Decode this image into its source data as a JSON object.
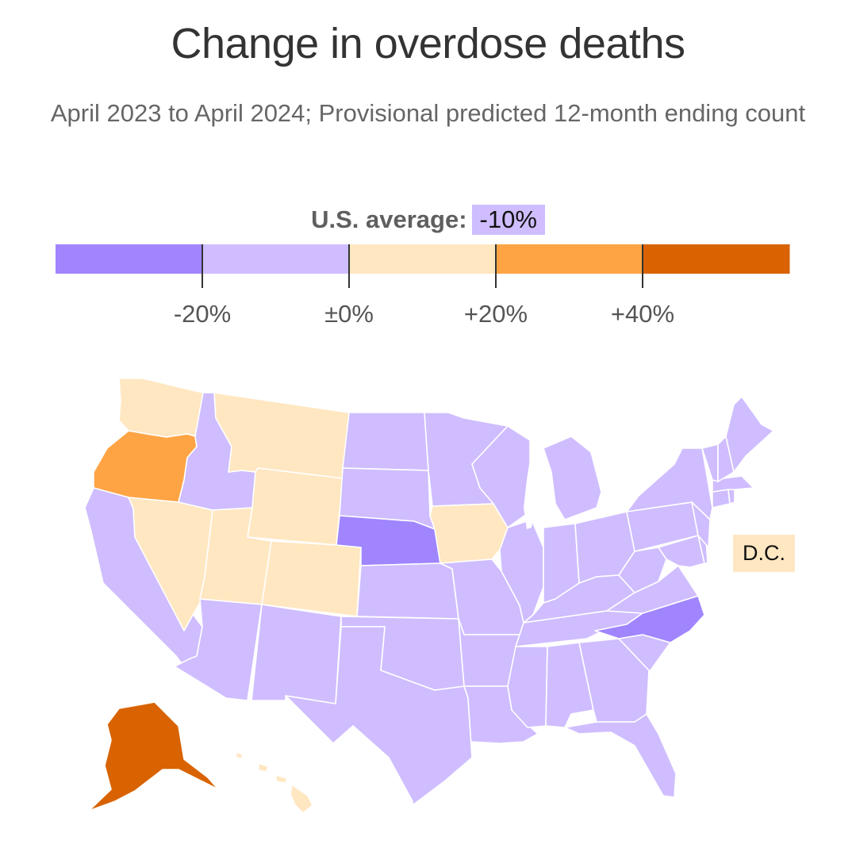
{
  "title": "Change in overdose deaths",
  "subtitle": "April 2023 to April 2024; Provisional predicted 12‑month ending count",
  "average": {
    "label": "U.S. average:",
    "value": "-10%"
  },
  "legend": {
    "bins": [
      {
        "name": "below-minus-20",
        "color": "#a085ff"
      },
      {
        "name": "minus-20-to-0",
        "color": "#cfbdff"
      },
      {
        "name": "0-to-plus-20",
        "color": "#ffe7c2"
      },
      {
        "name": "plus-20-to-40",
        "color": "#ffa444"
      },
      {
        "name": "above-plus-40",
        "color": "#d86300"
      }
    ],
    "ticks": [
      "-20%",
      "±0%",
      "+20%",
      "+40%"
    ]
  },
  "dc": {
    "label": "D.C.",
    "bin": 2
  },
  "states": {
    "WA": 2,
    "OR": 3,
    "CA": 1,
    "NV": 2,
    "ID": 1,
    "MT": 2,
    "WY": 2,
    "UT": 2,
    "CO": 2,
    "AZ": 1,
    "NM": 1,
    "ND": 1,
    "SD": 1,
    "NE": 0,
    "KS": 1,
    "OK": 1,
    "TX": 1,
    "MN": 1,
    "IA": 2,
    "MO": 1,
    "AR": 1,
    "LA": 1,
    "WI": 1,
    "IL": 1,
    "MI": 1,
    "IN": 1,
    "OH": 1,
    "KY": 1,
    "TN": 1,
    "MS": 1,
    "AL": 1,
    "GA": 1,
    "FL": 1,
    "SC": 1,
    "NC": 0,
    "VA": 1,
    "WV": 1,
    "PA": 1,
    "NY": 1,
    "MD": 1,
    "DE": 1,
    "NJ": 1,
    "CT": 1,
    "RI": 1,
    "MA": 1,
    "VT": 1,
    "NH": 1,
    "ME": 1,
    "AK": 4,
    "HI": 2
  }
}
